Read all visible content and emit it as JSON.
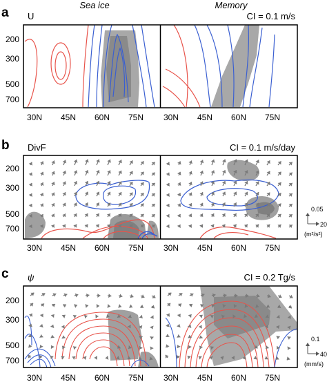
{
  "figure": {
    "column_titles": [
      "Sea ice",
      "Memory"
    ],
    "x_ticks": [
      "30N",
      "45N",
      "60N",
      "75N"
    ],
    "y_ticks": [
      "200",
      "300",
      "500",
      "700"
    ]
  },
  "chart_data": [
    {
      "type": "contour",
      "panel_letter": "a",
      "variable": "U",
      "ci": "CI = 0.1 m/s",
      "x_ticks_deg": [
        30,
        45,
        60,
        75
      ],
      "y_ticks_hpa": [
        200,
        300,
        500,
        700
      ],
      "xlim": [
        22,
        90
      ],
      "ylim": [
        850,
        100
      ],
      "colors": {
        "positive": "#e8534a",
        "negative": "#3a5fd1",
        "shading": "#9a9a9a"
      },
      "arrows": false
    },
    {
      "type": "contour",
      "panel_letter": "b",
      "variable": "DivF",
      "ci": "CI = 0.1 m/s/day",
      "x_ticks_deg": [
        30,
        45,
        60,
        75
      ],
      "y_ticks_hpa": [
        200,
        300,
        500,
        700
      ],
      "xlim": [
        22,
        90
      ],
      "ylim": [
        850,
        100
      ],
      "colors": {
        "positive": "#e8534a",
        "negative": "#3a5fd1",
        "shading": "#9a9a9a",
        "arrows": "#808080"
      },
      "arrows": true,
      "arrow_scale": {
        "vertical": "0.05",
        "horizontal": "20",
        "units": "(m²/s²)"
      }
    },
    {
      "type": "contour",
      "panel_letter": "c",
      "variable": "ψ",
      "ci": "CI = 0.2 Tg/s",
      "x_ticks_deg": [
        30,
        45,
        60,
        75
      ],
      "y_ticks_hpa": [
        200,
        300,
        500,
        700
      ],
      "xlim": [
        22,
        90
      ],
      "ylim": [
        850,
        100
      ],
      "colors": {
        "positive": "#e8534a",
        "negative": "#3a5fd1",
        "shading": "#9a9a9a",
        "arrows": "#808080"
      },
      "arrows": true,
      "arrow_scale": {
        "vertical": "0.1",
        "horizontal": "40",
        "units": "(mm/s)"
      }
    }
  ]
}
